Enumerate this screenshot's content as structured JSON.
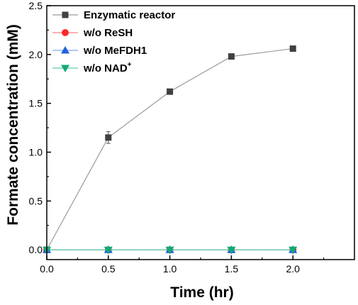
{
  "chart_data": {
    "type": "line",
    "xlabel": "Time (hr)",
    "ylabel": "Formate concentration (mM)",
    "xlim": [
      0.0,
      2.5
    ],
    "ylim": [
      -0.1,
      2.5
    ],
    "x_ticks": [
      "0.0",
      "0.5",
      "1.0",
      "1.5",
      "2.0"
    ],
    "y_ticks": [
      "0.0",
      "0.5",
      "1.0",
      "1.5",
      "2.0",
      "2.5"
    ],
    "grid": false,
    "legend_position": "top-left",
    "series": [
      {
        "name": "Enzymatic reactor",
        "marker": "square",
        "marker_color": "#404040",
        "line_color": "#9a9a9a",
        "x": [
          0.0,
          0.5,
          1.0,
          1.5,
          2.0
        ],
        "y": [
          0.0,
          1.15,
          1.62,
          1.98,
          2.06
        ],
        "error": [
          0.0,
          0.06,
          0.0,
          0.02,
          0.0
        ]
      },
      {
        "name": "w/o ReSH",
        "marker": "circle",
        "marker_color": "#ff2a2a",
        "line_color": "#ff8080",
        "x": [
          0.0,
          0.5,
          1.0,
          1.5,
          2.0
        ],
        "y": [
          0.0,
          0.0,
          0.0,
          0.0,
          0.0
        ]
      },
      {
        "name": "w/o MeFDH1",
        "marker": "triangle-up",
        "marker_color": "#2060e0",
        "line_color": "#7fa8f0",
        "x": [
          0.0,
          0.5,
          1.0,
          1.5,
          2.0
        ],
        "y": [
          0.0,
          0.0,
          0.0,
          0.0,
          0.0
        ]
      },
      {
        "name": "w/o NAD",
        "name_superscript": "+",
        "marker": "triangle-down",
        "marker_color": "#11aa77",
        "line_color": "#66ccaa",
        "x": [
          0.0,
          0.5,
          1.0,
          1.5,
          2.0
        ],
        "y": [
          0.0,
          0.0,
          0.0,
          0.0,
          0.0
        ]
      }
    ]
  }
}
